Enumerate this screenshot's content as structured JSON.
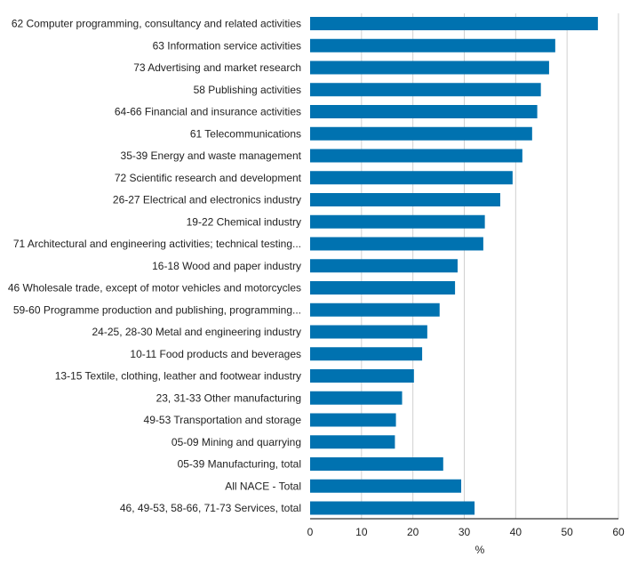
{
  "chart_data": {
    "type": "bar",
    "orientation": "horizontal",
    "title": "",
    "xlabel": "%",
    "ylabel": "",
    "xlim": [
      0,
      60
    ],
    "xticks": [
      0,
      10,
      20,
      30,
      40,
      50,
      60
    ],
    "grid": true,
    "bar_color": "#0072b0",
    "categories": [
      "62 Computer programming, consultancy and related activities",
      "63 Information service activities",
      "73 Advertising and market research",
      "58 Publishing activities",
      "64-66 Financial and insurance activities",
      "61 Telecommunications",
      "35-39 Energy and waste management",
      "72 Scientific research and development",
      "26-27 Electrical and electronics industry",
      "19-22 Chemical industry",
      "71 Architectural and engineering activities; technical testing...",
      "16-18 Wood and paper industry",
      "46 Wholesale trade, except of motor vehicles and motorcycles",
      "59-60 Programme production and publishing, programming...",
      "24-25, 28-30 Metal and engineering industry",
      "10-11 Food products and beverages",
      "13-15 Textile, clothing, leather and footwear industry",
      "23, 31-33 Other manufacturing",
      "49-53 Transportation and storage",
      "05-09 Mining and quarrying",
      "05-39 Manufacturing, total",
      "All NACE - Total",
      "46, 49-53, 58-66, 71-73 Services, total"
    ],
    "values": [
      56.0,
      47.7,
      46.5,
      44.9,
      44.2,
      43.2,
      41.3,
      39.4,
      37.0,
      34.0,
      33.7,
      28.7,
      28.2,
      25.2,
      22.8,
      21.8,
      20.2,
      17.9,
      16.7,
      16.5,
      25.9,
      29.4,
      32.0
    ]
  }
}
